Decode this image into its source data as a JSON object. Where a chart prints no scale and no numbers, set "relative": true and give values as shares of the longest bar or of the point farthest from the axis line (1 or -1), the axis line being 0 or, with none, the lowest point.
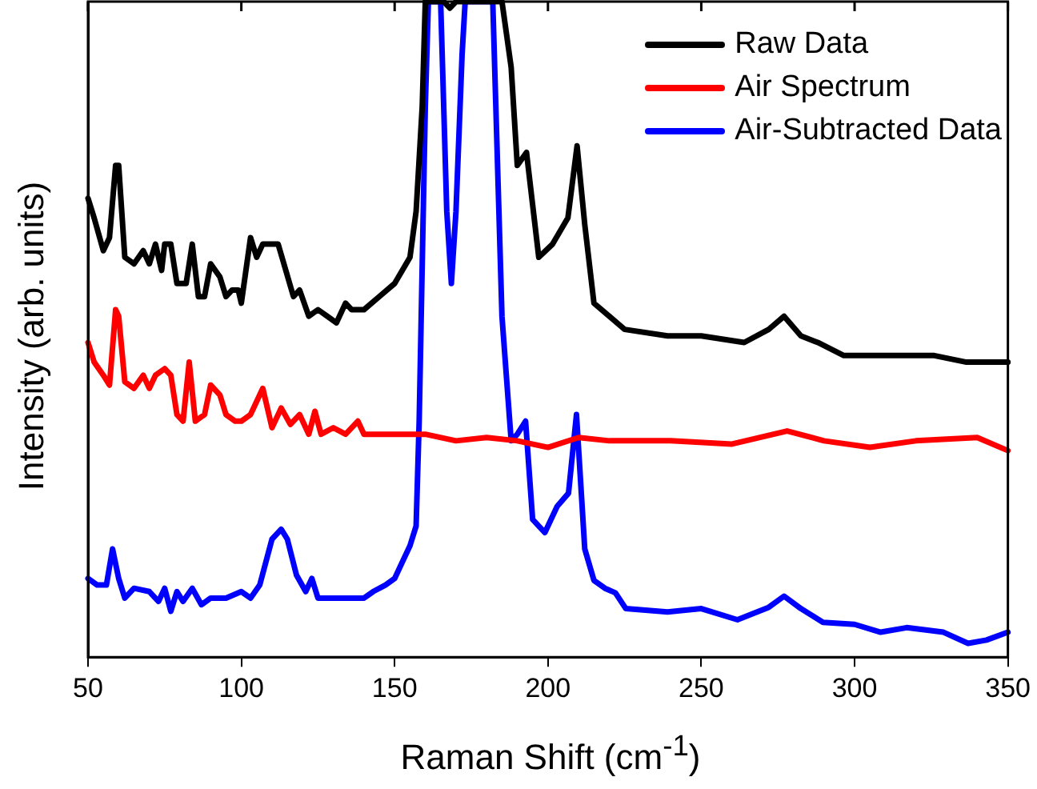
{
  "chart_data": {
    "type": "line",
    "relative": true,
    "xlabel": "Raman Shift (cm$^{-1}$)",
    "ylabel": "Intensity (arb. units)",
    "xlim": [
      50,
      350
    ],
    "xticks": [
      50,
      100,
      150,
      200,
      250,
      300,
      350
    ],
    "legend": "top right",
    "grid": false,
    "marker": "none",
    "line_style": "solid",
    "series": [
      {
        "name": "Raw Data",
        "color": "#000000",
        "x": [
          50,
          52,
          55,
          57,
          59,
          60,
          62,
          65,
          68,
          70,
          72,
          74,
          75,
          77,
          79,
          82,
          84,
          86,
          88,
          90,
          93,
          95,
          97,
          99,
          100,
          103,
          105,
          107,
          112,
          117,
          119,
          122,
          125,
          128,
          131,
          134,
          136,
          140,
          145,
          150,
          155,
          157,
          159,
          160,
          166,
          168,
          170,
          185,
          188,
          190,
          193,
          197,
          201.5,
          206.5,
          209.5,
          212,
          215,
          225,
          239,
          250,
          264,
          272,
          277,
          282.5,
          288,
          296.5,
          308,
          326,
          336.5,
          350
        ],
        "values": [
          0.7,
          0.67,
          0.62,
          0.64,
          0.75,
          0.75,
          0.61,
          0.6,
          0.62,
          0.6,
          0.63,
          0.59,
          0.63,
          0.63,
          0.57,
          0.57,
          0.63,
          0.55,
          0.55,
          0.6,
          0.58,
          0.55,
          0.56,
          0.56,
          0.54,
          0.64,
          0.61,
          0.63,
          0.63,
          0.55,
          0.56,
          0.52,
          0.53,
          0.52,
          0.51,
          0.54,
          0.53,
          0.53,
          0.55,
          0.57,
          0.61,
          0.68,
          0.84,
          1,
          1,
          0.99,
          1,
          1,
          0.9,
          0.75,
          0.77,
          0.61,
          0.63,
          0.67,
          0.78,
          0.66,
          0.54,
          0.5,
          0.49,
          0.49,
          0.48,
          0.5,
          0.52,
          0.49,
          0.48,
          0.46,
          0.46,
          0.46,
          0.45,
          0.45
        ]
      },
      {
        "name": "Air Spectrum",
        "color": "#ff0000",
        "x": [
          50,
          52,
          55,
          57,
          59,
          60,
          62,
          65,
          68,
          70,
          72,
          75,
          77,
          79,
          81,
          83,
          85,
          88,
          90,
          93,
          95,
          98,
          100,
          103,
          107,
          110,
          113,
          116,
          119,
          122,
          124,
          126,
          130,
          134,
          138,
          140,
          150,
          160,
          170,
          180,
          190,
          200,
          210,
          220,
          240,
          260,
          278,
          290,
          305,
          320,
          340,
          350
        ],
        "values": [
          0.48,
          0.45,
          0.43,
          0.415,
          0.53,
          0.52,
          0.42,
          0.41,
          0.43,
          0.41,
          0.43,
          0.44,
          0.43,
          0.37,
          0.36,
          0.45,
          0.36,
          0.37,
          0.415,
          0.4,
          0.37,
          0.36,
          0.36,
          0.37,
          0.41,
          0.35,
          0.38,
          0.355,
          0.37,
          0.34,
          0.375,
          0.34,
          0.35,
          0.34,
          0.36,
          0.34,
          0.34,
          0.34,
          0.33,
          0.335,
          0.33,
          0.32,
          0.335,
          0.33,
          0.33,
          0.325,
          0.345,
          0.33,
          0.32,
          0.33,
          0.335,
          0.315
        ]
      },
      {
        "name": "Air-Subtracted Data",
        "color": "#0000ff",
        "x": [
          50,
          53,
          56,
          58,
          60,
          62,
          65,
          70,
          73,
          75,
          77,
          79,
          81,
          84,
          87,
          90,
          95,
          100,
          103,
          106,
          110,
          113,
          115,
          118,
          121,
          123,
          125,
          130,
          135,
          140,
          143,
          147,
          150,
          152,
          155,
          157,
          158,
          159,
          160,
          161,
          165,
          167,
          168.5,
          170,
          172,
          173,
          182,
          185,
          188,
          190,
          192.7,
          195,
          199,
          203,
          206.7,
          209.3,
          212,
          215,
          218.6,
          222,
          225.4,
          239,
          250,
          261.8,
          272,
          277,
          282.5,
          289.7,
          300,
          308.5,
          317,
          329,
          337,
          343,
          350
        ],
        "values": [
          0.12,
          0.11,
          0.11,
          0.165,
          0.12,
          0.09,
          0.105,
          0.1,
          0.085,
          0.105,
          0.07,
          0.1,
          0.085,
          0.105,
          0.08,
          0.09,
          0.09,
          0.1,
          0.09,
          0.11,
          0.18,
          0.195,
          0.18,
          0.125,
          0.1,
          0.12,
          0.09,
          0.09,
          0.09,
          0.09,
          0.1,
          0.11,
          0.12,
          0.14,
          0.17,
          0.2,
          0.36,
          0.6,
          0.84,
          1,
          1,
          0.68,
          0.57,
          0.68,
          0.92,
          1,
          1,
          0.52,
          0.33,
          0.34,
          0.36,
          0.21,
          0.19,
          0.23,
          0.25,
          0.37,
          0.165,
          0.117,
          0.105,
          0.098,
          0.074,
          0.069,
          0.074,
          0.057,
          0.076,
          0.093,
          0.074,
          0.053,
          0.05,
          0.038,
          0.045,
          0.038,
          0.021,
          0.026,
          0.038
        ]
      }
    ]
  }
}
